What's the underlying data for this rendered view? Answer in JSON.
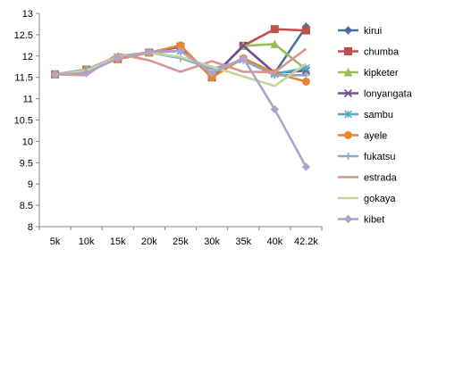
{
  "chart_data": {
    "type": "line",
    "title": "",
    "xlabel": "",
    "ylabel": "",
    "categories": [
      "5k",
      "10k",
      "15k",
      "20k",
      "25k",
      "30k",
      "35k",
      "40k",
      "42.2k"
    ],
    "ylim": [
      8,
      13
    ],
    "ytick_step": 0.5,
    "grid": false,
    "legend_position": "right",
    "series": [
      {
        "name": "kirui",
        "color": "#4a6fa5",
        "marker": "diamond",
        "values": [
          11.57,
          11.68,
          11.93,
          12.08,
          12.22,
          11.5,
          12.24,
          11.6,
          12.69
        ]
      },
      {
        "name": "chumba",
        "color": "#c0504d",
        "marker": "square",
        "values": [
          11.57,
          11.68,
          11.93,
          12.08,
          12.22,
          11.5,
          12.24,
          12.63,
          12.6
        ]
      },
      {
        "name": "kipketer",
        "color": "#9bbb59",
        "marker": "triangle",
        "values": [
          11.57,
          11.68,
          11.93,
          12.08,
          12.22,
          11.5,
          12.24,
          12.28,
          11.68
        ]
      },
      {
        "name": "lonyangata",
        "color": "#6e5094",
        "marker": "x",
        "values": [
          11.57,
          11.68,
          11.93,
          12.08,
          12.22,
          11.5,
          12.24,
          11.6,
          11.66
        ]
      },
      {
        "name": "sambu",
        "color": "#4bacc6",
        "marker": "asterisk",
        "values": [
          11.57,
          11.66,
          11.98,
          12.08,
          12.12,
          11.6,
          11.92,
          11.58,
          11.72
        ]
      },
      {
        "name": "ayele",
        "color": "#e7862f",
        "marker": "circle",
        "values": [
          11.57,
          11.68,
          11.93,
          12.08,
          12.25,
          11.5,
          11.95,
          11.6,
          11.4
        ]
      },
      {
        "name": "fukatsu",
        "color": "#8fa7cc",
        "marker": "plus",
        "values": [
          11.57,
          11.68,
          12.0,
          12.08,
          11.95,
          11.7,
          11.9,
          11.55,
          11.55
        ]
      },
      {
        "name": "estrada",
        "color": "#d99794",
        "marker": "none",
        "values": [
          11.57,
          11.55,
          12.05,
          11.9,
          11.63,
          11.88,
          11.63,
          11.62,
          12.17
        ]
      },
      {
        "name": "gokaya",
        "color": "#c3d69b",
        "marker": "none",
        "values": [
          11.57,
          11.66,
          11.98,
          12.08,
          11.98,
          11.75,
          11.52,
          11.3,
          11.82
        ]
      },
      {
        "name": "kibet",
        "color": "#b3a2c7",
        "marker": "diamond",
        "values": [
          11.57,
          11.6,
          11.95,
          12.1,
          12.12,
          11.6,
          11.95,
          10.75,
          9.4
        ]
      }
    ]
  }
}
